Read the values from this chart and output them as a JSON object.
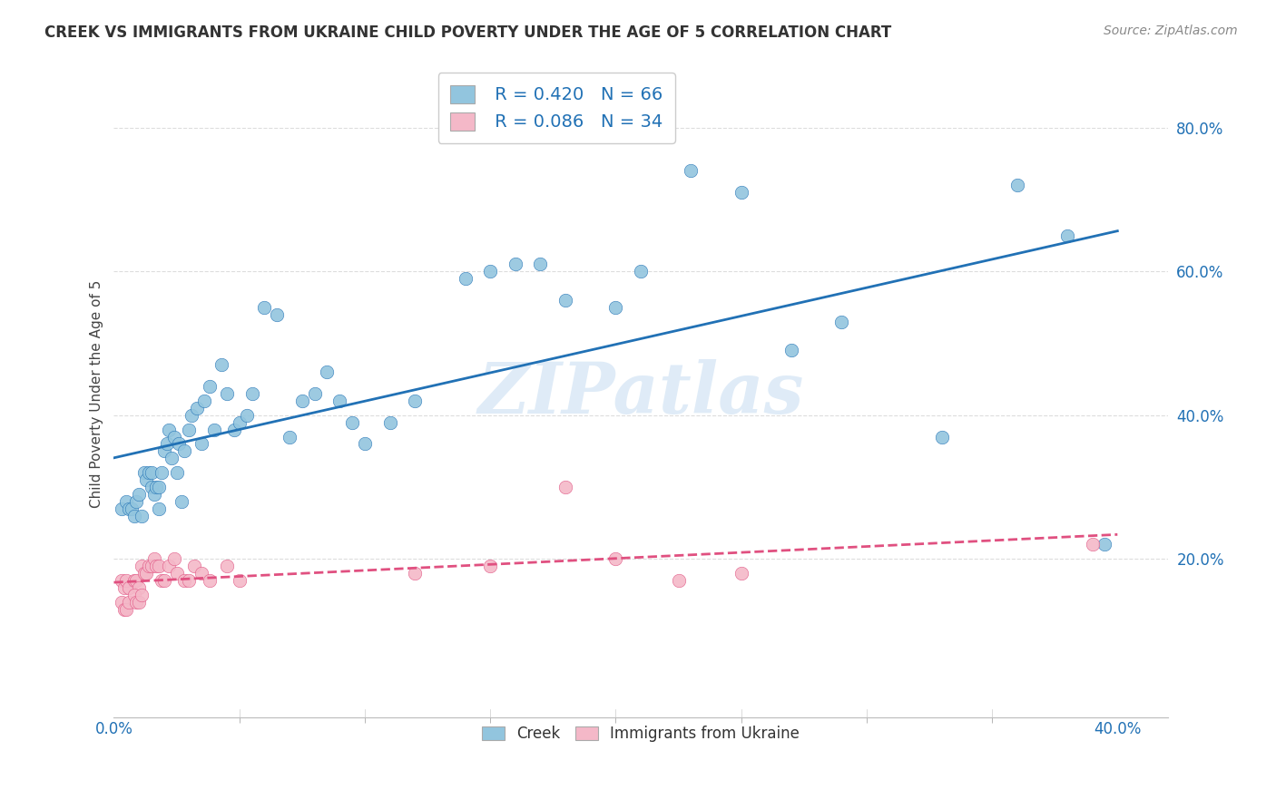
{
  "title": "CREEK VS IMMIGRANTS FROM UKRAINE CHILD POVERTY UNDER THE AGE OF 5 CORRELATION CHART",
  "source": "Source: ZipAtlas.com",
  "ylabel": "Child Poverty Under the Age of 5",
  "y_tick_values": [
    0.2,
    0.4,
    0.6,
    0.8
  ],
  "x_range": [
    0.0,
    0.42
  ],
  "y_range": [
    -0.02,
    0.88
  ],
  "legend_r1": "R = 0.420",
  "legend_n1": "N = 66",
  "legend_r2": "R = 0.086",
  "legend_n2": "N = 34",
  "creek_color": "#92c5de",
  "ukraine_color": "#f4b8c8",
  "trendline_creek_color": "#2171b5",
  "trendline_ukraine_color": "#e05080",
  "watermark": "ZIPatlas",
  "creek_x": [
    0.003,
    0.005,
    0.006,
    0.007,
    0.008,
    0.009,
    0.01,
    0.011,
    0.012,
    0.013,
    0.014,
    0.015,
    0.015,
    0.016,
    0.017,
    0.018,
    0.018,
    0.019,
    0.02,
    0.021,
    0.022,
    0.023,
    0.024,
    0.025,
    0.026,
    0.027,
    0.028,
    0.03,
    0.031,
    0.033,
    0.035,
    0.036,
    0.038,
    0.04,
    0.043,
    0.045,
    0.048,
    0.05,
    0.053,
    0.055,
    0.06,
    0.065,
    0.07,
    0.075,
    0.08,
    0.085,
    0.09,
    0.095,
    0.1,
    0.11,
    0.12,
    0.14,
    0.15,
    0.16,
    0.17,
    0.18,
    0.2,
    0.21,
    0.23,
    0.25,
    0.27,
    0.29,
    0.33,
    0.36,
    0.38,
    0.395
  ],
  "creek_y": [
    0.27,
    0.28,
    0.27,
    0.27,
    0.26,
    0.28,
    0.29,
    0.26,
    0.32,
    0.31,
    0.32,
    0.3,
    0.32,
    0.29,
    0.3,
    0.3,
    0.27,
    0.32,
    0.35,
    0.36,
    0.38,
    0.34,
    0.37,
    0.32,
    0.36,
    0.28,
    0.35,
    0.38,
    0.4,
    0.41,
    0.36,
    0.42,
    0.44,
    0.38,
    0.47,
    0.43,
    0.38,
    0.39,
    0.4,
    0.43,
    0.55,
    0.54,
    0.37,
    0.42,
    0.43,
    0.46,
    0.42,
    0.39,
    0.36,
    0.39,
    0.42,
    0.59,
    0.6,
    0.61,
    0.61,
    0.56,
    0.55,
    0.6,
    0.74,
    0.71,
    0.49,
    0.53,
    0.37,
    0.72,
    0.65,
    0.22
  ],
  "ukraine_x": [
    0.003,
    0.004,
    0.005,
    0.006,
    0.008,
    0.009,
    0.01,
    0.011,
    0.012,
    0.013,
    0.014,
    0.015,
    0.016,
    0.017,
    0.018,
    0.019,
    0.02,
    0.022,
    0.024,
    0.025,
    0.028,
    0.03,
    0.032,
    0.035,
    0.038,
    0.045,
    0.05,
    0.12,
    0.15,
    0.18,
    0.2,
    0.225,
    0.25,
    0.39
  ],
  "ukraine_y": [
    0.17,
    0.16,
    0.17,
    0.16,
    0.17,
    0.17,
    0.16,
    0.19,
    0.18,
    0.18,
    0.19,
    0.19,
    0.2,
    0.19,
    0.19,
    0.17,
    0.17,
    0.19,
    0.2,
    0.18,
    0.17,
    0.17,
    0.19,
    0.18,
    0.17,
    0.19,
    0.17,
    0.18,
    0.19,
    0.3,
    0.2,
    0.17,
    0.18,
    0.22
  ],
  "ukraine_low_x": [
    0.003,
    0.004,
    0.005,
    0.006,
    0.008,
    0.009,
    0.01,
    0.011
  ],
  "ukraine_low_y": [
    0.14,
    0.13,
    0.13,
    0.14,
    0.15,
    0.14,
    0.14,
    0.15
  ],
  "background_color": "#ffffff",
  "grid_color": "#dddddd"
}
